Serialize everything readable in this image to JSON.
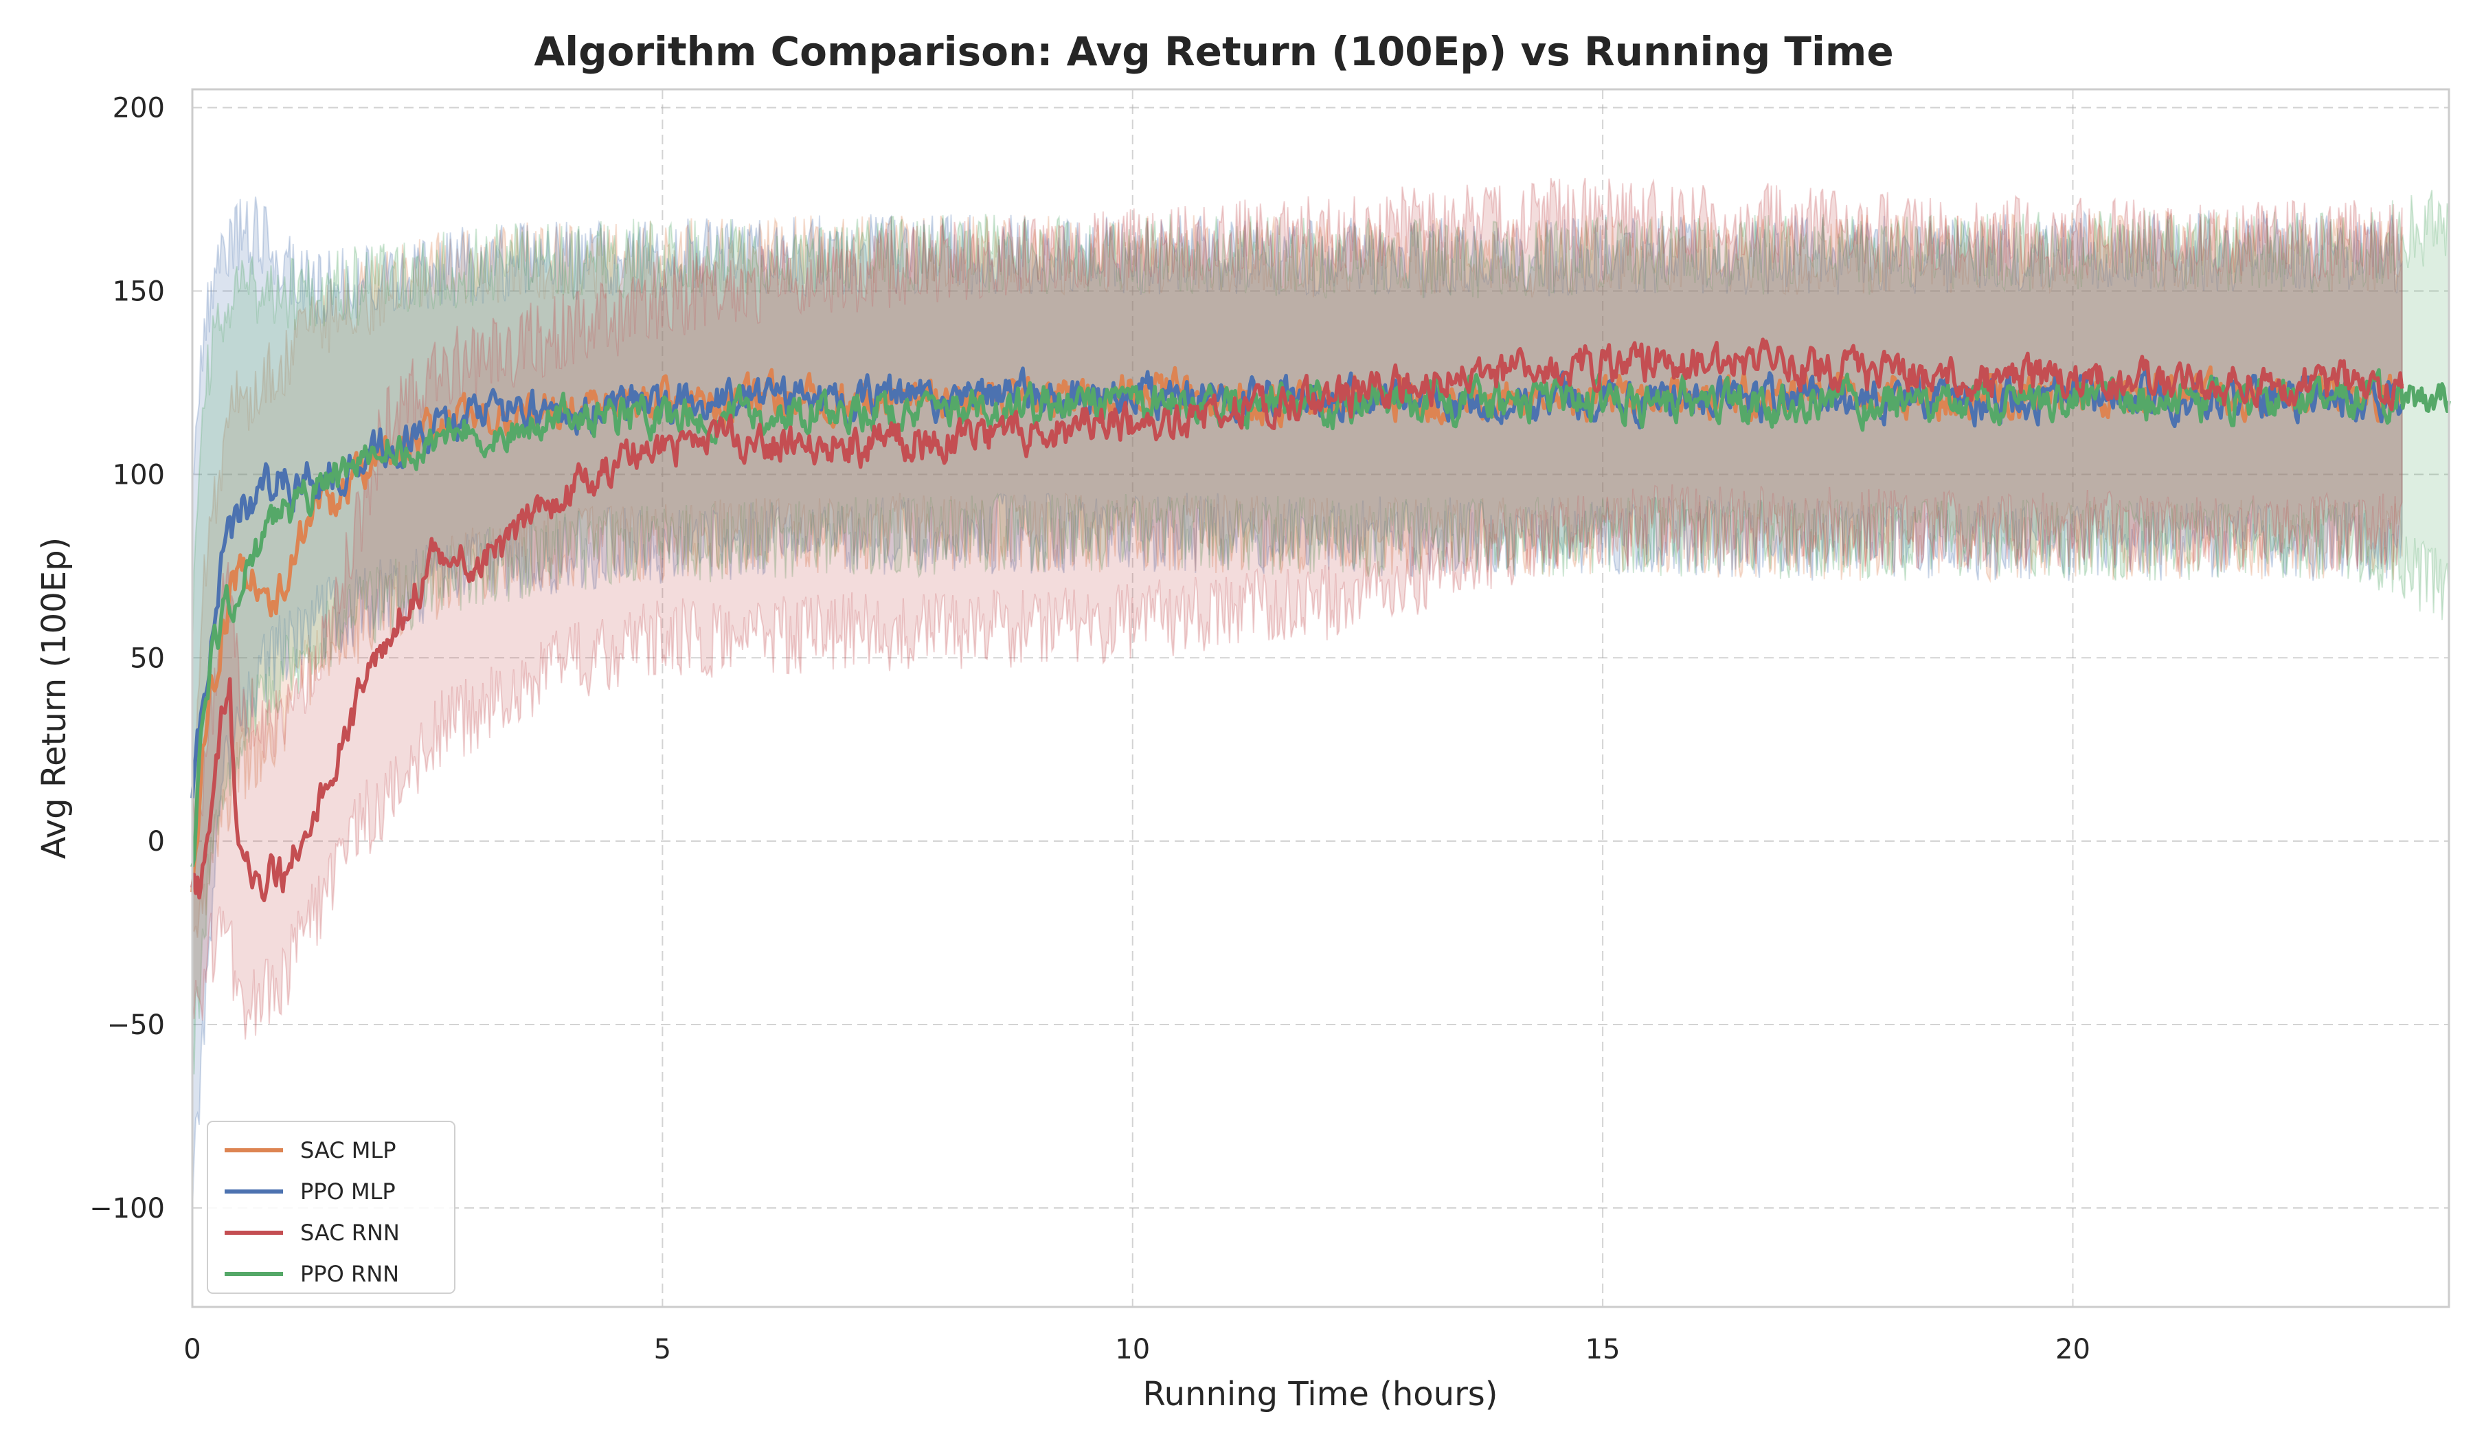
{
  "chart_data": {
    "type": "line",
    "title": "Algorithm Comparison: Avg Return (100Ep) vs Running Time",
    "xlabel": "Running Time (hours)",
    "ylabel": "Avg Return (100Ep)",
    "xlim": [
      0,
      24
    ],
    "ylim": [
      -127,
      205
    ],
    "xticks": [
      0,
      5,
      10,
      15,
      20
    ],
    "xtick_labels": [
      "0",
      "5",
      "10",
      "15",
      "20"
    ],
    "yticks": [
      -100,
      -50,
      0,
      50,
      100,
      150,
      200
    ],
    "ytick_labels": [
      "−100",
      "−50",
      "0",
      "50",
      "100",
      "150",
      "200"
    ],
    "grid": true,
    "legend_position": "lower-left",
    "series": [
      {
        "name": "SAC MLP",
        "color": "#dd8452",
        "x": [
          0,
          0.1,
          0.2,
          0.35,
          0.5,
          0.7,
          0.9,
          1.1,
          1.3,
          1.6,
          2.0,
          2.5,
          3.0,
          3.5,
          4.0,
          5.0,
          6.0,
          7.0,
          8.0,
          9.0,
          10.0,
          11.0,
          12.0,
          13.0,
          14.0,
          15.0,
          16.0,
          17.0,
          18.0,
          19.0,
          20.0,
          21.0,
          22.0,
          23.0,
          23.5
        ],
        "mean": [
          -15,
          20,
          40,
          60,
          75,
          70,
          65,
          80,
          90,
          95,
          105,
          112,
          115,
          117,
          118,
          120,
          120,
          121,
          121,
          121,
          122,
          121,
          120,
          120,
          120,
          121,
          121,
          121,
          121,
          121,
          122,
          122,
          122,
          121,
          121
        ],
        "lower": [
          -35,
          -20,
          0,
          10,
          20,
          25,
          30,
          40,
          50,
          55,
          65,
          70,
          75,
          78,
          80,
          82,
          83,
          84,
          84,
          84,
          84,
          84,
          83,
          83,
          83,
          83,
          83,
          82,
          82,
          82,
          82,
          82,
          82,
          82,
          82
        ],
        "upper": [
          10,
          60,
          90,
          110,
          120,
          125,
          130,
          135,
          140,
          145,
          150,
          155,
          157,
          158,
          158,
          159,
          159,
          160,
          160,
          160,
          160,
          160,
          159,
          159,
          159,
          160,
          160,
          160,
          160,
          160,
          161,
          161,
          161,
          160,
          160
        ]
      },
      {
        "name": "PPO MLP",
        "color": "#4c72b0",
        "x": [
          0,
          0.1,
          0.2,
          0.35,
          0.5,
          0.7,
          0.9,
          1.1,
          1.3,
          1.6,
          2.0,
          2.5,
          3.0,
          3.5,
          4.0,
          5.0,
          6.0,
          7.0,
          8.0,
          9.0,
          10.0,
          11.0,
          12.0,
          13.0,
          14.0,
          15.0,
          16.0,
          17.0,
          18.0,
          19.0,
          20.0,
          21.0,
          22.0,
          23.0,
          23.5
        ],
        "mean": [
          10,
          35,
          55,
          80,
          90,
          95,
          100,
          98,
          100,
          102,
          108,
          112,
          115,
          117,
          118,
          119,
          120,
          120,
          121,
          121,
          122,
          121,
          121,
          120,
          120,
          120,
          121,
          121,
          121,
          120,
          121,
          121,
          121,
          121,
          121
        ],
        "lower": [
          -95,
          -60,
          -20,
          20,
          35,
          45,
          50,
          55,
          60,
          62,
          66,
          70,
          74,
          77,
          79,
          81,
          82,
          83,
          83,
          84,
          84,
          84,
          83,
          83,
          83,
          83,
          83,
          82,
          82,
          82,
          82,
          82,
          82,
          82,
          82
        ],
        "upper": [
          95,
          130,
          150,
          160,
          165,
          165,
          160,
          155,
          152,
          152,
          153,
          155,
          157,
          158,
          158,
          159,
          159,
          160,
          160,
          160,
          160,
          160,
          159,
          159,
          159,
          160,
          160,
          160,
          160,
          160,
          161,
          161,
          161,
          160,
          160
        ]
      },
      {
        "name": "SAC RNN",
        "color": "#c44e52",
        "x": [
          0,
          0.1,
          0.2,
          0.3,
          0.4,
          0.45,
          0.5,
          0.6,
          0.8,
          1.0,
          1.2,
          1.5,
          1.8,
          2.0,
          2.3,
          2.6,
          3.0,
          3.5,
          4.0,
          4.5,
          5.0,
          6.0,
          7.0,
          8.0,
          9.0,
          10.0,
          11.0,
          12.0,
          13.0,
          14.0,
          15.0,
          16.0,
          17.0,
          18.0,
          19.0,
          20.0,
          21.0,
          22.0,
          23.0,
          23.5
        ],
        "mean": [
          -15,
          -12,
          5,
          30,
          48,
          10,
          -5,
          -8,
          -10,
          -8,
          5,
          20,
          40,
          50,
          65,
          80,
          75,
          85,
          95,
          102,
          108,
          110,
          108,
          110,
          112,
          114,
          117,
          120,
          124,
          128,
          130,
          131,
          129,
          127,
          126,
          125,
          124,
          125,
          124,
          123
        ],
        "lower": [
          -45,
          -45,
          -30,
          -20,
          -15,
          -40,
          -45,
          -45,
          -40,
          -35,
          -25,
          -10,
          5,
          10,
          20,
          30,
          35,
          42,
          48,
          52,
          55,
          56,
          57,
          57,
          58,
          60,
          62,
          65,
          72,
          80,
          85,
          87,
          86,
          85,
          85,
          85,
          84,
          84,
          84,
          84
        ],
        "upper": [
          5,
          15,
          35,
          60,
          70,
          55,
          40,
          35,
          30,
          35,
          45,
          60,
          90,
          110,
          120,
          128,
          132,
          135,
          140,
          143,
          148,
          152,
          155,
          158,
          160,
          162,
          164,
          166,
          168,
          170,
          170,
          170,
          168,
          166,
          165,
          165,
          164,
          164,
          164,
          163
        ]
      },
      {
        "name": "PPO RNN",
        "color": "#55a868",
        "x": [
          0,
          0.1,
          0.2,
          0.35,
          0.5,
          0.7,
          0.9,
          1.1,
          1.3,
          1.6,
          2.0,
          2.5,
          3.0,
          3.5,
          4.0,
          5.0,
          6.0,
          7.0,
          8.0,
          9.0,
          10.0,
          11.0,
          12.0,
          13.0,
          14.0,
          15.0,
          16.0,
          17.0,
          18.0,
          19.0,
          20.0,
          21.0,
          22.0,
          23.0,
          23.5,
          24.0
        ],
        "mean": [
          -10,
          30,
          50,
          62,
          70,
          80,
          88,
          92,
          96,
          100,
          105,
          110,
          112,
          114,
          115,
          116,
          117,
          118,
          118,
          119,
          119,
          119,
          119,
          120,
          120,
          120,
          120,
          120,
          120,
          119,
          120,
          120,
          120,
          121,
          121,
          122
        ],
        "lower": [
          -60,
          -30,
          -5,
          15,
          30,
          40,
          45,
          50,
          55,
          60,
          65,
          70,
          74,
          77,
          79,
          81,
          82,
          83,
          83,
          84,
          84,
          84,
          83,
          83,
          83,
          83,
          83,
          82,
          82,
          82,
          82,
          82,
          82,
          82,
          75,
          70
        ],
        "upper": [
          60,
          110,
          135,
          145,
          150,
          150,
          150,
          150,
          150,
          151,
          152,
          155,
          157,
          158,
          158,
          159,
          159,
          160,
          160,
          160,
          160,
          160,
          159,
          159,
          159,
          160,
          160,
          160,
          160,
          160,
          161,
          161,
          161,
          160,
          165,
          168
        ]
      }
    ]
  }
}
